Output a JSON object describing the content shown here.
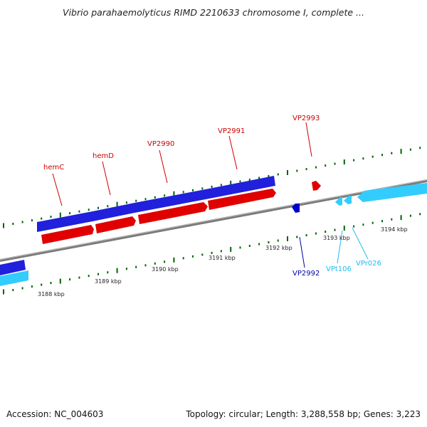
{
  "header": {
    "title": "Vibrio parahaemolyticus RIMD 2210633 chromosome I, complete ..."
  },
  "footer": {
    "accession": "Accession: NC_004603",
    "summary": "Topology: circular; Length: 3,288,558 bp; Genes: 3,223"
  },
  "colors": {
    "forward_gene": "#e00000",
    "forward_cds": "#2020dd",
    "reverse_gene": "#0000cc",
    "rna": "#33ccff",
    "axis": "#808080",
    "tick": "#006400",
    "label_red": "#cc0000",
    "label_blue": "#0000aa",
    "label_cyan": "#22bbee"
  },
  "genome_view": {
    "scale_labels": [
      "3188 kbp",
      "3189 kbp",
      "3190 kbp",
      "3191 kbp",
      "3192 kbp",
      "3193 kbp",
      "3194 kbp"
    ],
    "gene_labels": [
      {
        "name": "hemC",
        "color": "#cc0000"
      },
      {
        "name": "hemD",
        "color": "#cc0000"
      },
      {
        "name": "VP2990",
        "color": "#cc0000"
      },
      {
        "name": "VP2991",
        "color": "#cc0000"
      },
      {
        "name": "VP2993",
        "color": "#cc0000"
      },
      {
        "name": "VP2992",
        "color": "#0000aa"
      },
      {
        "name": "VPt106",
        "color": "#22bbee"
      },
      {
        "name": "VPr026",
        "color": "#22bbee"
      }
    ]
  }
}
